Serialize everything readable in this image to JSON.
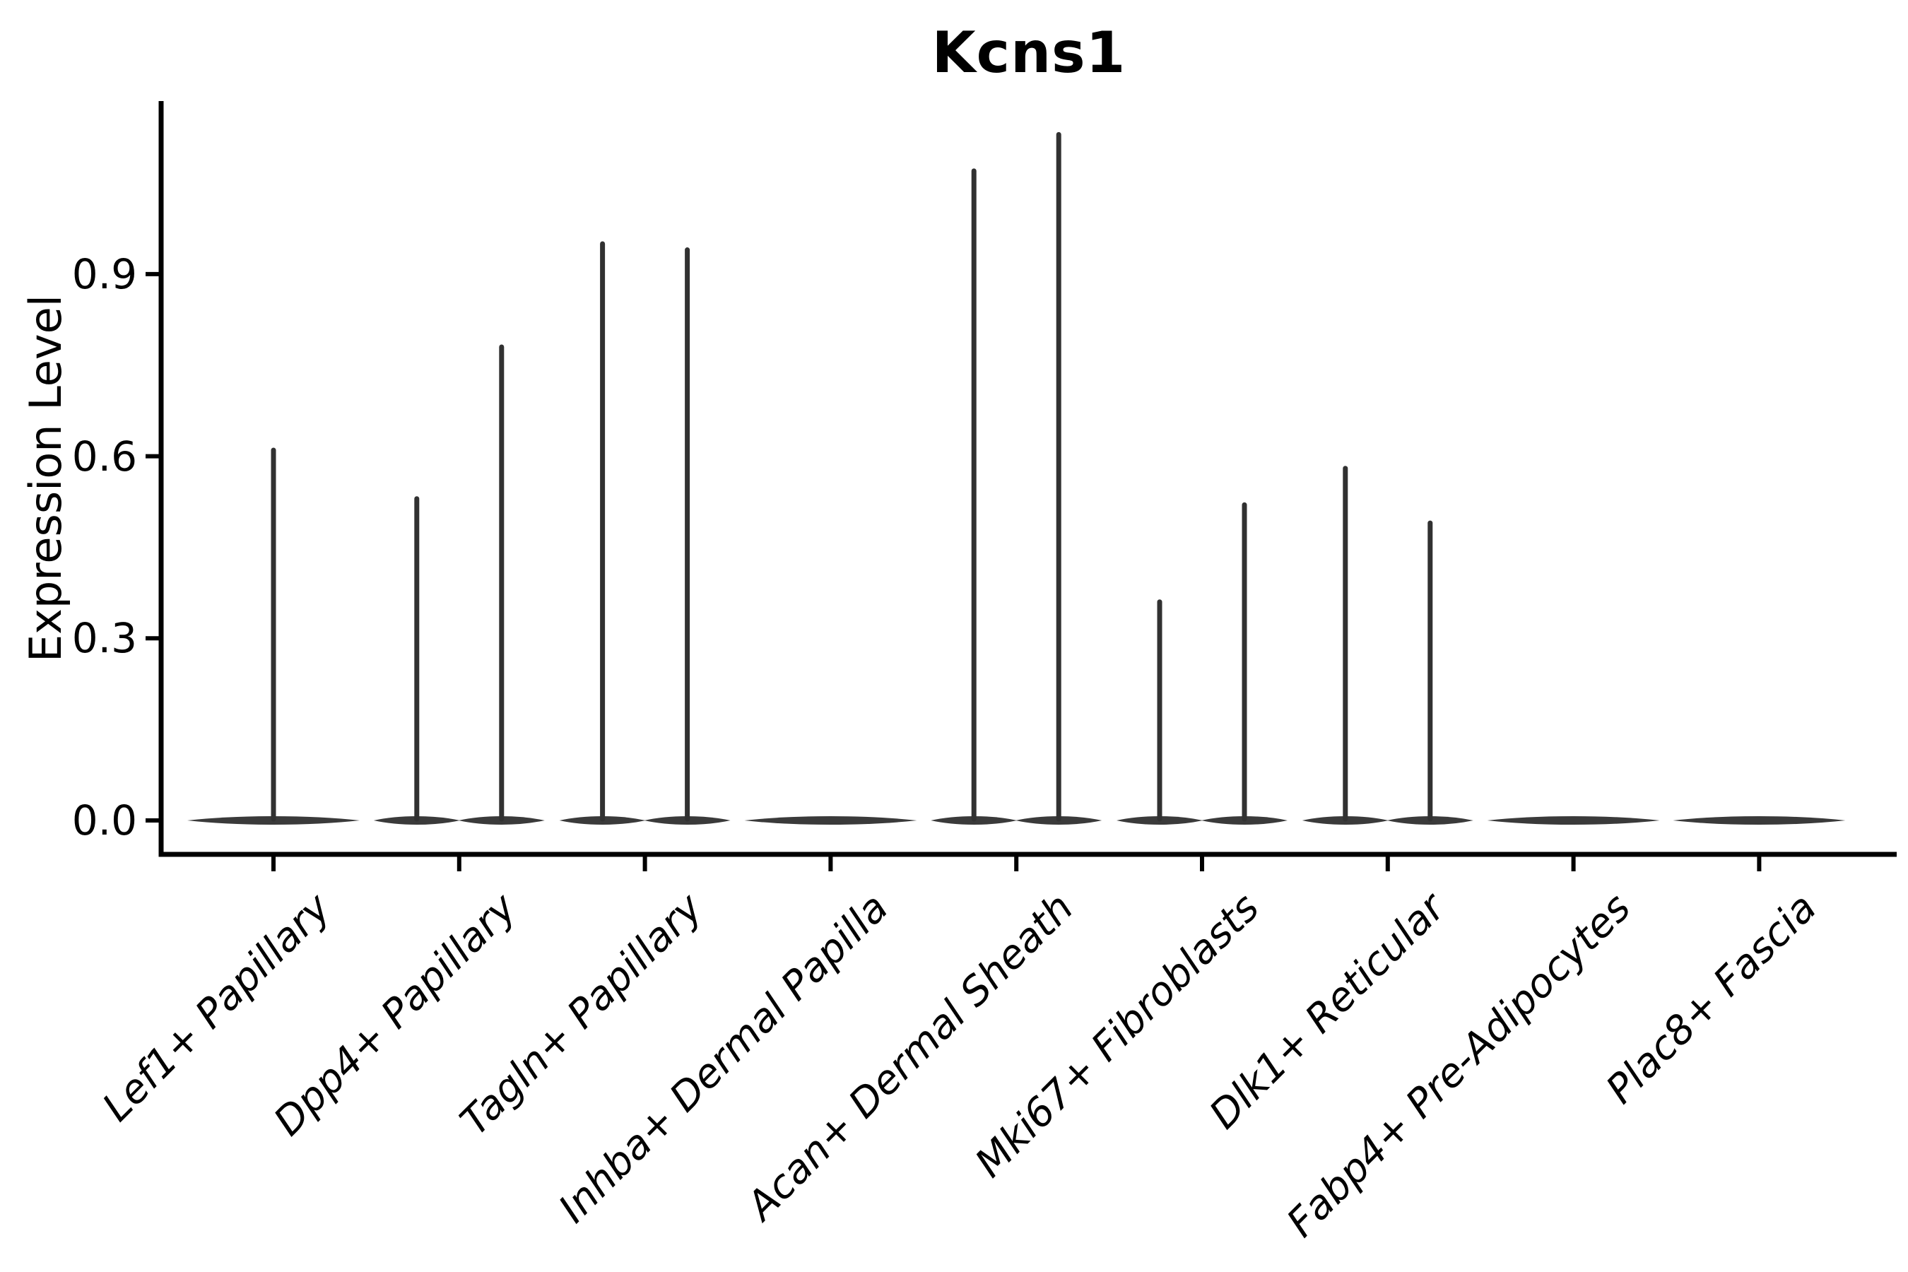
{
  "figure": {
    "background": "#ffffff"
  },
  "chart_data": {
    "type": "violin",
    "title": "Kcns1",
    "xlabel": "",
    "ylabel": "Expression Level",
    "ylim": [
      0,
      1.185
    ],
    "yticks": [
      0.0,
      0.3,
      0.6,
      0.9
    ],
    "ytick_labels": [
      "0.0",
      "0.3",
      "0.6",
      "0.9"
    ],
    "grid": false,
    "legend": "none",
    "categories": [
      "Lef1+ Papillary",
      "Dpp4+ Papillary",
      "Tagln+ Papillary",
      "Inhba+ Dermal Papilla",
      "Acan+ Dermal Sheath",
      "Mki67+ Fibroblasts",
      "Dlk1+ Reticular",
      "Fabp4+ Pre-Adipocytes",
      "Plac8+ Fascia"
    ],
    "violins": [
      {
        "category": "Lef1+ Papillary",
        "split": false,
        "bodies": [
          {
            "position": "center",
            "max_expression": 0.61
          }
        ]
      },
      {
        "category": "Dpp4+ Papillary",
        "split": true,
        "bodies": [
          {
            "position": "left",
            "max_expression": 0.53
          },
          {
            "position": "right",
            "max_expression": 0.78
          }
        ]
      },
      {
        "category": "Tagln+ Papillary",
        "split": true,
        "bodies": [
          {
            "position": "left",
            "max_expression": 0.95
          },
          {
            "position": "right",
            "max_expression": 0.94
          }
        ]
      },
      {
        "category": "Inhba+ Dermal Papilla",
        "split": false,
        "bodies": [
          {
            "position": "center",
            "max_expression": 0.0
          }
        ]
      },
      {
        "category": "Acan+ Dermal Sheath",
        "split": true,
        "bodies": [
          {
            "position": "left",
            "max_expression": 1.07
          },
          {
            "position": "right",
            "max_expression": 1.13
          }
        ]
      },
      {
        "category": "Mki67+ Fibroblasts",
        "split": true,
        "bodies": [
          {
            "position": "left",
            "max_expression": 0.36
          },
          {
            "position": "right",
            "max_expression": 0.52
          }
        ]
      },
      {
        "category": "Dlk1+ Reticular",
        "split": true,
        "bodies": [
          {
            "position": "left",
            "max_expression": 0.58
          },
          {
            "position": "right",
            "max_expression": 0.49
          }
        ]
      },
      {
        "category": "Fabp4+ Pre-Adipocytes",
        "split": false,
        "bodies": [
          {
            "position": "center",
            "max_expression": 0.0
          }
        ]
      },
      {
        "category": "Plac8+ Fascia",
        "split": false,
        "bodies": [
          {
            "position": "center",
            "max_expression": 0.0
          }
        ]
      }
    ],
    "colors": {
      "violin_body": "#3a3a3a",
      "violin_spike": "#313131",
      "axis": "#000000",
      "text": "#000000"
    },
    "description": "Violin densities are concentrated at 0; thin vertical spikes show the upper expression tails."
  }
}
